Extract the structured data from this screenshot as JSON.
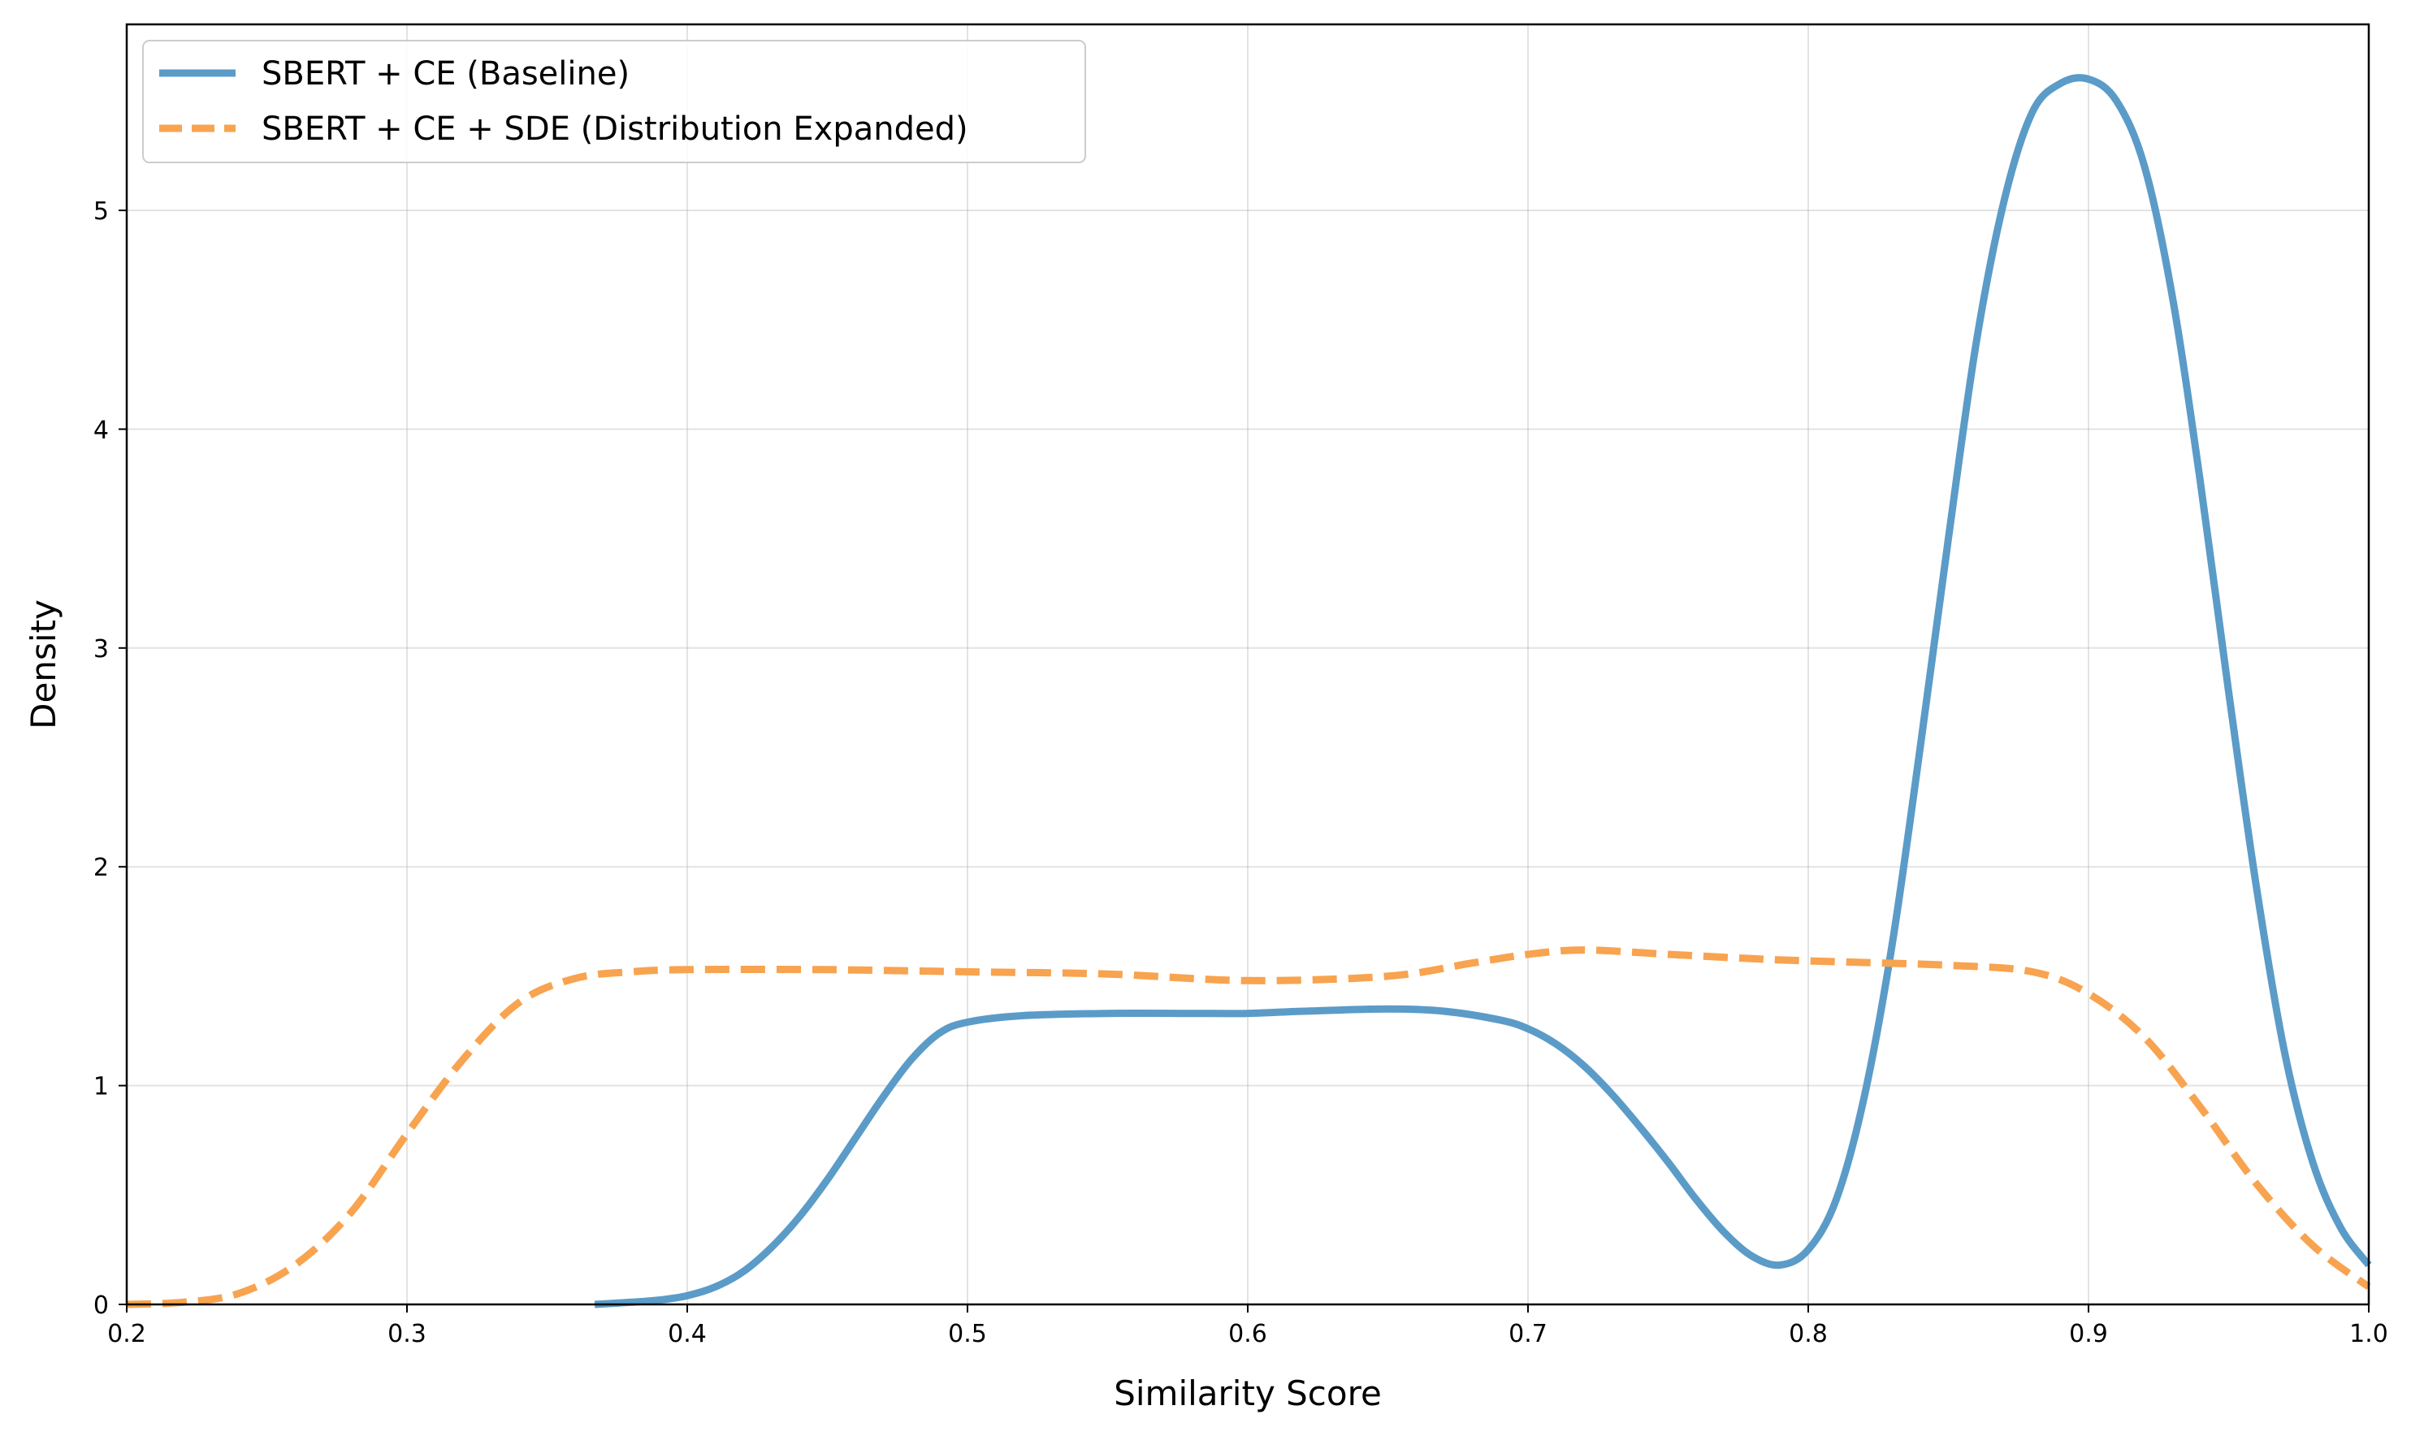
{
  "chart_data": {
    "type": "line",
    "xlabel": "Similarity Score",
    "ylabel": "Density",
    "xlim": [
      0.2,
      1.0
    ],
    "ylim": [
      0,
      5.85
    ],
    "xticks": [
      "0.2",
      "0.3",
      "0.4",
      "0.5",
      "0.6",
      "0.7",
      "0.8",
      "0.9",
      "1.0"
    ],
    "yticks": [
      "0",
      "1",
      "2",
      "3",
      "4",
      "5"
    ],
    "grid": true,
    "legend_position": "top-left",
    "series": [
      {
        "name": "SBERT + CE (Baseline)",
        "color": "#5b9bc8",
        "style": "solid",
        "points": [
          [
            0.367,
            0.0
          ],
          [
            0.38,
            0.01
          ],
          [
            0.39,
            0.02
          ],
          [
            0.4,
            0.04
          ],
          [
            0.41,
            0.08
          ],
          [
            0.42,
            0.15
          ],
          [
            0.43,
            0.26
          ],
          [
            0.44,
            0.4
          ],
          [
            0.45,
            0.57
          ],
          [
            0.46,
            0.76
          ],
          [
            0.47,
            0.95
          ],
          [
            0.48,
            1.12
          ],
          [
            0.49,
            1.24
          ],
          [
            0.5,
            1.29
          ],
          [
            0.52,
            1.32
          ],
          [
            0.55,
            1.33
          ],
          [
            0.58,
            1.33
          ],
          [
            0.6,
            1.33
          ],
          [
            0.62,
            1.34
          ],
          [
            0.65,
            1.35
          ],
          [
            0.67,
            1.34
          ],
          [
            0.69,
            1.3
          ],
          [
            0.7,
            1.26
          ],
          [
            0.71,
            1.19
          ],
          [
            0.72,
            1.09
          ],
          [
            0.73,
            0.96
          ],
          [
            0.74,
            0.81
          ],
          [
            0.75,
            0.65
          ],
          [
            0.76,
            0.48
          ],
          [
            0.77,
            0.33
          ],
          [
            0.78,
            0.22
          ],
          [
            0.79,
            0.18
          ],
          [
            0.8,
            0.25
          ],
          [
            0.81,
            0.48
          ],
          [
            0.82,
            0.95
          ],
          [
            0.83,
            1.65
          ],
          [
            0.84,
            2.55
          ],
          [
            0.85,
            3.5
          ],
          [
            0.86,
            4.4
          ],
          [
            0.87,
            5.05
          ],
          [
            0.88,
            5.45
          ],
          [
            0.89,
            5.58
          ],
          [
            0.9,
            5.6
          ],
          [
            0.91,
            5.5
          ],
          [
            0.92,
            5.2
          ],
          [
            0.93,
            4.6
          ],
          [
            0.94,
            3.75
          ],
          [
            0.95,
            2.8
          ],
          [
            0.96,
            1.9
          ],
          [
            0.97,
            1.15
          ],
          [
            0.98,
            0.65
          ],
          [
            0.99,
            0.35
          ],
          [
            1.0,
            0.18
          ]
        ]
      },
      {
        "name": "SBERT + CE + SDE (Distribution Expanded)",
        "color": "#f8a34f",
        "style": "dashed",
        "points": [
          [
            0.2,
            0.0
          ],
          [
            0.22,
            0.01
          ],
          [
            0.24,
            0.05
          ],
          [
            0.26,
            0.18
          ],
          [
            0.28,
            0.42
          ],
          [
            0.3,
            0.78
          ],
          [
            0.32,
            1.12
          ],
          [
            0.34,
            1.38
          ],
          [
            0.36,
            1.49
          ],
          [
            0.38,
            1.52
          ],
          [
            0.4,
            1.53
          ],
          [
            0.45,
            1.53
          ],
          [
            0.5,
            1.52
          ],
          [
            0.55,
            1.51
          ],
          [
            0.6,
            1.48
          ],
          [
            0.65,
            1.5
          ],
          [
            0.68,
            1.56
          ],
          [
            0.7,
            1.6
          ],
          [
            0.72,
            1.62
          ],
          [
            0.75,
            1.6
          ],
          [
            0.78,
            1.58
          ],
          [
            0.8,
            1.57
          ],
          [
            0.85,
            1.55
          ],
          [
            0.88,
            1.52
          ],
          [
            0.9,
            1.42
          ],
          [
            0.92,
            1.22
          ],
          [
            0.94,
            0.9
          ],
          [
            0.96,
            0.55
          ],
          [
            0.98,
            0.27
          ],
          [
            1.0,
            0.08
          ]
        ]
      }
    ]
  }
}
